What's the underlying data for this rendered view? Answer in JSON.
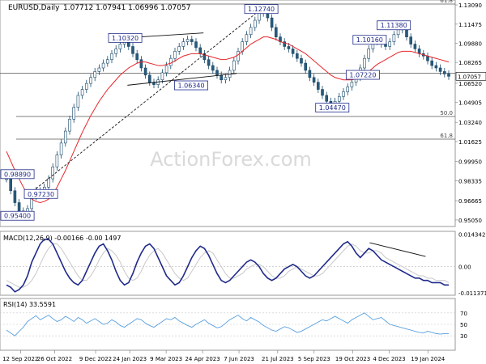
{
  "chart_data": {
    "type": "candlestick",
    "title": "EURUSD,Daily",
    "ohlc_readout": "1.07712 1.07941 1.06996 1.07057",
    "watermark": "ActionForex.com",
    "price_axis": {
      "range": [
        0.945,
        1.135
      ],
      "ticks": [
        "1.13090",
        "1.11475",
        "1.09880",
        "1.08265",
        "1.06520",
        "1.04905",
        "1.03240",
        "1.01625",
        "0.99950",
        "0.98335",
        "0.96665",
        "0.95050"
      ],
      "tick_values": [
        1.1309,
        1.11475,
        1.0988,
        1.08265,
        1.0652,
        1.04905,
        1.0324,
        1.01625,
        0.9995,
        0.98335,
        0.96665,
        0.9505
      ],
      "last_price_label": "1.07057"
    },
    "fib_levels": [
      {
        "label": "61.8",
        "value": 1.1316
      },
      {
        "label": "50.0",
        "value": 1.0373
      },
      {
        "label": "61.8",
        "value": 1.0183
      }
    ],
    "extra_horizontal": {
      "value": 1.0736
    },
    "annotations": [
      {
        "text": "1.12740",
        "x": 0.574,
        "value": 1.1274
      },
      {
        "text": "1.10320",
        "x": 0.275,
        "value": 1.1032
      },
      {
        "text": "1.11380",
        "x": 0.865,
        "value": 1.1138
      },
      {
        "text": "1.10160",
        "x": 0.812,
        "value": 1.1016
      },
      {
        "text": "1.06340",
        "x": 0.42,
        "value": 1.0634
      },
      {
        "text": "1.07220",
        "x": 0.797,
        "value": 1.0722
      },
      {
        "text": "1.04470",
        "x": 0.73,
        "value": 1.0447
      },
      {
        "text": "0.98890",
        "x": 0.033,
        "value": 0.9889
      },
      {
        "text": "0.97230",
        "x": 0.09,
        "value": 0.9723
      },
      {
        "text": "0.95400",
        "x": 0.014,
        "value": 0.954
      }
    ],
    "close_series": [
      0.985,
      0.975,
      0.965,
      0.958,
      0.955,
      0.96,
      0.97,
      0.975,
      0.972,
      0.978,
      0.985,
      0.995,
      1.005,
      1.015,
      1.025,
      1.035,
      1.045,
      1.055,
      1.06,
      1.065,
      1.07,
      1.075,
      1.078,
      1.082,
      1.085,
      1.09,
      1.094,
      1.098,
      1.1,
      1.096,
      1.09,
      1.085,
      1.078,
      1.072,
      1.066,
      1.064,
      1.068,
      1.074,
      1.08,
      1.086,
      1.092,
      1.096,
      1.1,
      1.102,
      1.1,
      1.095,
      1.09,
      1.085,
      1.08,
      1.076,
      1.072,
      1.068,
      1.07,
      1.076,
      1.084,
      1.092,
      1.1,
      1.106,
      1.112,
      1.118,
      1.124,
      1.126,
      1.12,
      1.112,
      1.104,
      1.1,
      1.096,
      1.094,
      1.09,
      1.086,
      1.082,
      1.076,
      1.07,
      1.066,
      1.06,
      1.055,
      1.05,
      1.047,
      1.05,
      1.054,
      1.058,
      1.062,
      1.066,
      1.07,
      1.078,
      1.086,
      1.094,
      1.1,
      1.102,
      1.098,
      1.096,
      1.1,
      1.106,
      1.112,
      1.11,
      1.104,
      1.098,
      1.094,
      1.09,
      1.088,
      1.084,
      1.08,
      1.078,
      1.075,
      1.073,
      1.071
    ],
    "sma_series": [
      1.008,
      1.0,
      0.992,
      0.985,
      0.978,
      0.972,
      0.968,
      0.966,
      0.965,
      0.966,
      0.968,
      0.972,
      0.978,
      0.985,
      0.992,
      1.0,
      1.008,
      1.016,
      1.024,
      1.031,
      1.038,
      1.044,
      1.05,
      1.055,
      1.06,
      1.064,
      1.068,
      1.072,
      1.075,
      1.078,
      1.08,
      1.082,
      1.083,
      1.083,
      1.082,
      1.081,
      1.08,
      1.08,
      1.081,
      1.082,
      1.084,
      1.086,
      1.088,
      1.089,
      1.09,
      1.09,
      1.09,
      1.089,
      1.088,
      1.087,
      1.086,
      1.085,
      1.085,
      1.086,
      1.087,
      1.089,
      1.092,
      1.095,
      1.098,
      1.1,
      1.102,
      1.104,
      1.104,
      1.103,
      1.102,
      1.1,
      1.099,
      1.098,
      1.096,
      1.094,
      1.092,
      1.09,
      1.087,
      1.084,
      1.081,
      1.078,
      1.075,
      1.072,
      1.07,
      1.069,
      1.068,
      1.068,
      1.068,
      1.069,
      1.07,
      1.072,
      1.075,
      1.078,
      1.081,
      1.083,
      1.085,
      1.087,
      1.089,
      1.091,
      1.092,
      1.092,
      1.092,
      1.091,
      1.09,
      1.089,
      1.088,
      1.087,
      1.086,
      1.085,
      1.084,
      1.083
    ],
    "channel_lines": [
      {
        "x1": 0.275,
        "y1": 1.1032,
        "x2": 0.447,
        "y2": 1.1074
      },
      {
        "x1": 0.28,
        "y1": 1.0635,
        "x2": 0.52,
        "y2": 1.0734
      }
    ],
    "dashed_trendline": {
      "x1": 0.065,
      "y1": 0.9725,
      "x2": 0.574,
      "y2": 1.1274
    },
    "x_axis": {
      "labels": [
        "12 Sep 2022",
        "26 Oct 2022",
        "9 Dec 2022",
        "24 Jan 2023",
        "9 Mar 2023",
        "24 Apr 2023",
        "7 Jun 2023",
        "21 Jul 2023",
        "5 Sep 2023",
        "19 Oct 2023",
        "4 Dec 2023",
        "19 Jan 2024"
      ],
      "label_x": [
        0.045,
        0.12,
        0.21,
        0.285,
        0.365,
        0.445,
        0.525,
        0.61,
        0.69,
        0.775,
        0.855,
        0.94
      ]
    },
    "macd": {
      "label": "MACD(12,26,9) -0.00166 -0.00 1497",
      "range": [
        -0.0125,
        0.0155
      ],
      "ticks": [
        "0.014342",
        "0.00",
        "-0.011371"
      ],
      "tick_values": [
        0.014342,
        0.0,
        -0.011371
      ],
      "series": [
        -0.008,
        -0.009,
        -0.011,
        -0.01,
        -0.008,
        -0.004,
        0.002,
        0.006,
        0.01,
        0.012,
        0.012,
        0.01,
        0.006,
        0.002,
        -0.002,
        -0.005,
        -0.007,
        -0.008,
        -0.006,
        -0.002,
        0.002,
        0.006,
        0.009,
        0.01,
        0.007,
        0.003,
        -0.002,
        -0.006,
        -0.008,
        -0.007,
        -0.003,
        0.002,
        0.006,
        0.009,
        0.01,
        0.008,
        0.004,
        0.0,
        -0.004,
        -0.006,
        -0.008,
        -0.007,
        -0.004,
        0.0,
        0.004,
        0.007,
        0.009,
        0.008,
        0.005,
        0.001,
        -0.003,
        -0.006,
        -0.007,
        -0.006,
        -0.004,
        -0.002,
        0.0,
        0.002,
        0.003,
        0.002,
        0.0,
        -0.003,
        -0.005,
        -0.006,
        -0.005,
        -0.003,
        -0.001,
        0.0,
        0.001,
        0.0,
        -0.002,
        -0.004,
        -0.005,
        -0.004,
        -0.002,
        0.0,
        0.002,
        0.004,
        0.006,
        0.008,
        0.01,
        0.011,
        0.009,
        0.006,
        0.004,
        0.006,
        0.008,
        0.007,
        0.005,
        0.003,
        0.002,
        0.001,
        0.0,
        -0.001,
        -0.002,
        -0.003,
        -0.004,
        -0.005,
        -0.005,
        -0.006,
        -0.006,
        -0.007,
        -0.007,
        -0.007,
        -0.008,
        -0.008
      ],
      "signal_series": [
        -0.006,
        -0.007,
        -0.008,
        -0.009,
        -0.009,
        -0.008,
        -0.006,
        -0.003,
        0.001,
        0.005,
        0.008,
        0.01,
        0.01,
        0.008,
        0.005,
        0.002,
        -0.001,
        -0.004,
        -0.006,
        -0.006,
        -0.004,
        -0.001,
        0.003,
        0.006,
        0.008,
        0.007,
        0.005,
        0.002,
        -0.002,
        -0.005,
        -0.006,
        -0.005,
        -0.002,
        0.002,
        0.005,
        0.007,
        0.008,
        0.006,
        0.003,
        0.0,
        -0.003,
        -0.005,
        -0.006,
        -0.005,
        -0.002,
        0.001,
        0.004,
        0.006,
        0.007,
        0.006,
        0.003,
        0.0,
        -0.003,
        -0.005,
        -0.005,
        -0.004,
        -0.003,
        -0.001,
        0.0,
        0.001,
        0.001,
        0.0,
        -0.002,
        -0.004,
        -0.005,
        -0.005,
        -0.004,
        -0.002,
        -0.001,
        0.0,
        -0.001,
        -0.002,
        -0.003,
        -0.004,
        -0.004,
        -0.003,
        -0.001,
        0.001,
        0.003,
        0.005,
        0.007,
        0.009,
        0.01,
        0.009,
        0.007,
        0.006,
        0.006,
        0.007,
        0.007,
        0.006,
        0.004,
        0.003,
        0.002,
        0.001,
        0.0,
        -0.001,
        -0.002,
        -0.003,
        -0.004,
        -0.004,
        -0.005,
        -0.005,
        -0.006,
        -0.006,
        -0.006,
        -0.007
      ],
      "divergence_line": {
        "x1": 0.812,
        "y1": 0.0105,
        "x2": 0.935,
        "y2": 0.0045
      }
    },
    "rsi": {
      "label": "RSI(14) 33.5591",
      "range": [
        5,
        95
      ],
      "ticks": [
        "70",
        "50",
        "30"
      ],
      "tick_values": [
        70,
        50,
        30
      ],
      "series": [
        40,
        35,
        30,
        38,
        45,
        55,
        60,
        65,
        58,
        62,
        66,
        60,
        55,
        58,
        64,
        60,
        55,
        62,
        58,
        52,
        56,
        60,
        55,
        50,
        52,
        58,
        54,
        48,
        45,
        50,
        55,
        60,
        58,
        52,
        48,
        45,
        50,
        55,
        60,
        58,
        62,
        56,
        52,
        48,
        45,
        50,
        54,
        58,
        52,
        48,
        44,
        46,
        52,
        58,
        62,
        66,
        60,
        56,
        62,
        58,
        54,
        48,
        44,
        40,
        38,
        42,
        46,
        44,
        40,
        36,
        38,
        42,
        46,
        50,
        54,
        58,
        56,
        60,
        64,
        60,
        56,
        52,
        58,
        62,
        66,
        70,
        64,
        58,
        60,
        62,
        56,
        50,
        48,
        46,
        44,
        42,
        40,
        38,
        36,
        35,
        38,
        36,
        34,
        33,
        34,
        34
      ]
    },
    "ylim": [
      0.945,
      1.135
    ]
  }
}
